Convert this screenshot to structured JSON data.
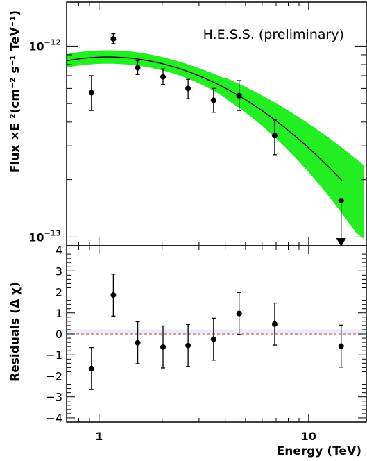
{
  "chart_data": [
    {
      "type": "scatter",
      "panel": "spectrum",
      "annotation": "H.E.S.S. (preliminary)",
      "ylabel": "Flux ×E ²(cm⁻² s⁻¹ TeV⁻¹)",
      "xscale": "log",
      "yscale": "log",
      "xlim": [
        0.7,
        19
      ],
      "ylim": [
        9e-14,
        1.7e-12
      ],
      "x_ticks": [
        1,
        10
      ],
      "y_ticks": [
        {
          "value": 1e-12,
          "label_base": "10",
          "label_exp": "−12"
        },
        {
          "value": 1e-13,
          "label_base": "10",
          "label_exp": "−13"
        }
      ],
      "points": [
        {
          "x": 0.92,
          "y": 5.7e-13,
          "ylo": 4.6e-13,
          "yhi": 7e-13
        },
        {
          "x": 1.17,
          "y": 1.09e-12,
          "ylo": 1.03e-12,
          "yhi": 1.16e-12
        },
        {
          "x": 1.53,
          "y": 7.7e-13,
          "ylo": 7.1e-13,
          "yhi": 8.4e-13
        },
        {
          "x": 2.02,
          "y": 6.9e-13,
          "ylo": 6.3e-13,
          "yhi": 7.6e-13
        },
        {
          "x": 2.66,
          "y": 6e-13,
          "ylo": 5.3e-13,
          "yhi": 6.7e-13
        },
        {
          "x": 3.52,
          "y": 5.2e-13,
          "ylo": 4.5e-13,
          "yhi": 6e-13
        },
        {
          "x": 4.66,
          "y": 5.5e-13,
          "ylo": 4.6e-13,
          "yhi": 6.6e-13
        },
        {
          "x": 6.89,
          "y": 3.4e-13,
          "ylo": 2.7e-13,
          "yhi": 4.1e-13
        },
        {
          "x": 14.3,
          "y": 1.55e-13,
          "ylo": 9e-14,
          "yhi": 1.55e-13,
          "upper_limit": true
        }
      ],
      "fit": {
        "model": "log-parabola",
        "norm_at_1TeV": 8.75e-13,
        "peak_energy": 1.1,
        "curvature": 0.225,
        "x_range": [
          0.7,
          14.5
        ],
        "band_color": "#22ee22",
        "line_color": "#000000"
      }
    },
    {
      "type": "scatter",
      "panel": "residuals",
      "ylabel": "Residuals (Δ χ)",
      "xlabel": "Energy (TeV)",
      "xscale": "log",
      "xlim": [
        0.7,
        19
      ],
      "ylim": [
        -4.2,
        4.2
      ],
      "y_ticks": [
        4,
        3,
        2,
        1,
        0,
        -1,
        -2,
        -3,
        -4
      ],
      "y_tick_labels": [
        "4",
        "3",
        "2",
        "1",
        "0",
        "−1",
        "−2",
        "−3",
        "−4"
      ],
      "x_ticks": [
        1,
        10
      ],
      "x_tick_labels": [
        "1",
        "10"
      ],
      "zero_line_color": "#d04040",
      "points": [
        {
          "x": 0.92,
          "y": -1.65,
          "err": 1.0
        },
        {
          "x": 1.17,
          "y": 1.85,
          "err": 1.0
        },
        {
          "x": 1.53,
          "y": -0.42,
          "err": 1.0
        },
        {
          "x": 2.02,
          "y": -0.62,
          "err": 1.0
        },
        {
          "x": 2.66,
          "y": -0.55,
          "err": 1.0
        },
        {
          "x": 3.52,
          "y": -0.25,
          "err": 1.0
        },
        {
          "x": 4.66,
          "y": 0.97,
          "err": 1.0
        },
        {
          "x": 6.89,
          "y": 0.47,
          "err": 1.0
        },
        {
          "x": 14.3,
          "y": -0.58,
          "err": 1.0
        }
      ]
    }
  ]
}
